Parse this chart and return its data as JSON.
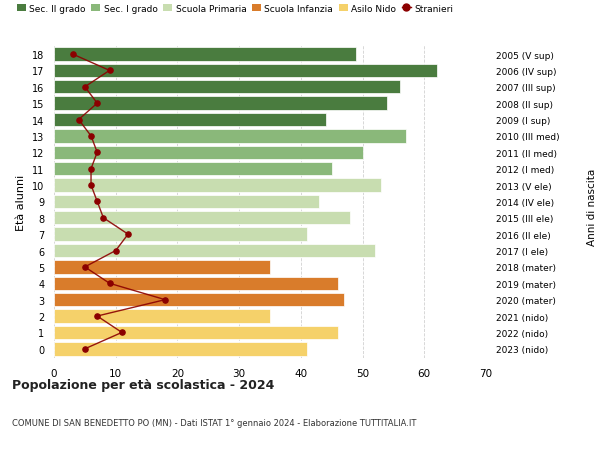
{
  "ages": [
    0,
    1,
    2,
    3,
    4,
    5,
    6,
    7,
    8,
    9,
    10,
    11,
    12,
    13,
    14,
    15,
    16,
    17,
    18
  ],
  "bar_values": [
    41,
    46,
    35,
    47,
    46,
    35,
    52,
    41,
    48,
    43,
    53,
    45,
    50,
    57,
    44,
    54,
    56,
    62,
    49
  ],
  "bar_colors": [
    "#f5d16a",
    "#f5d16a",
    "#f5d16a",
    "#d97c2b",
    "#d97c2b",
    "#d97c2b",
    "#c8ddb0",
    "#c8ddb0",
    "#c8ddb0",
    "#c8ddb0",
    "#c8ddb0",
    "#8ab87a",
    "#8ab87a",
    "#8ab87a",
    "#4a7c3f",
    "#4a7c3f",
    "#4a7c3f",
    "#4a7c3f",
    "#4a7c3f"
  ],
  "stranieri_values": [
    5,
    11,
    7,
    18,
    9,
    5,
    10,
    12,
    8,
    7,
    6,
    6,
    7,
    6,
    4,
    7,
    5,
    9,
    3
  ],
  "right_labels": [
    "2023 (nido)",
    "2022 (nido)",
    "2021 (nido)",
    "2020 (mater)",
    "2019 (mater)",
    "2018 (mater)",
    "2017 (I ele)",
    "2016 (II ele)",
    "2015 (III ele)",
    "2014 (IV ele)",
    "2013 (V ele)",
    "2012 (I med)",
    "2011 (II med)",
    "2010 (III med)",
    "2009 (I sup)",
    "2008 (II sup)",
    "2007 (III sup)",
    "2006 (IV sup)",
    "2005 (V sup)"
  ],
  "legend_labels": [
    "Sec. II grado",
    "Sec. I grado",
    "Scuola Primaria",
    "Scuola Infanzia",
    "Asilo Nido",
    "Stranieri"
  ],
  "legend_colors": [
    "#4a7c3f",
    "#8ab87a",
    "#c8ddb0",
    "#d97c2b",
    "#f5d16a",
    "#8b0000"
  ],
  "ylabel": "Età alunni",
  "right_ylabel": "Anni di nascita",
  "title": "Popolazione per età scolastica - 2024",
  "subtitle": "COMUNE DI SAN BENEDETTO PO (MN) - Dati ISTAT 1° gennaio 2024 - Elaborazione TUTTITALIA.IT",
  "xlim": [
    0,
    70
  ],
  "bg_color": "#ffffff",
  "plot_bg_color": "#ffffff",
  "grid_color": "#cccccc",
  "stranieri_color": "#8b0000"
}
